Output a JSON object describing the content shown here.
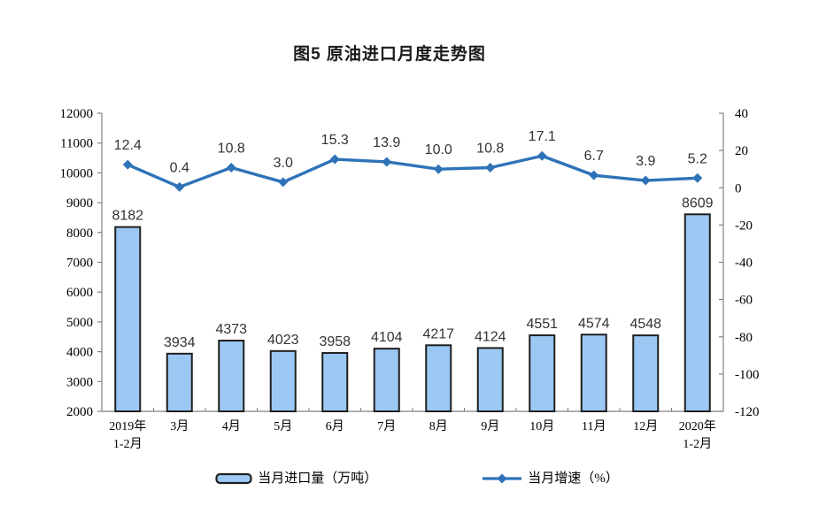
{
  "chart_data": {
    "type": "bar+line",
    "title": "图5 原油进口月度走势图",
    "categories": [
      "2019年\n1-2月",
      "3月",
      "4月",
      "5月",
      "6月",
      "7月",
      "8月",
      "9月",
      "10月",
      "11月",
      "12月",
      "2020年\n1-2月"
    ],
    "series": [
      {
        "name": "当月进口量（万吨）",
        "type": "bar",
        "axis": "left",
        "values": [
          8182,
          3934,
          4373,
          4023,
          3958,
          4104,
          4217,
          4124,
          4551,
          4574,
          4548,
          8609
        ],
        "fill_color": "#9CC9F4",
        "border_color": "#1F1F1F"
      },
      {
        "name": "当月增速（%）",
        "type": "line",
        "axis": "right",
        "values": [
          12.4,
          0.4,
          10.8,
          3.0,
          15.3,
          13.9,
          10.0,
          10.8,
          17.1,
          6.7,
          3.9,
          5.2
        ],
        "color": "#2E73B8",
        "marker": "diamond"
      }
    ],
    "left_axis": {
      "min": 2000,
      "max": 12000,
      "step": 1000
    },
    "right_axis": {
      "min": -120,
      "max": 40,
      "step": 20
    },
    "grid": false,
    "legend_position": "bottom",
    "axis_color": "#808080",
    "label_color": "#333333"
  }
}
